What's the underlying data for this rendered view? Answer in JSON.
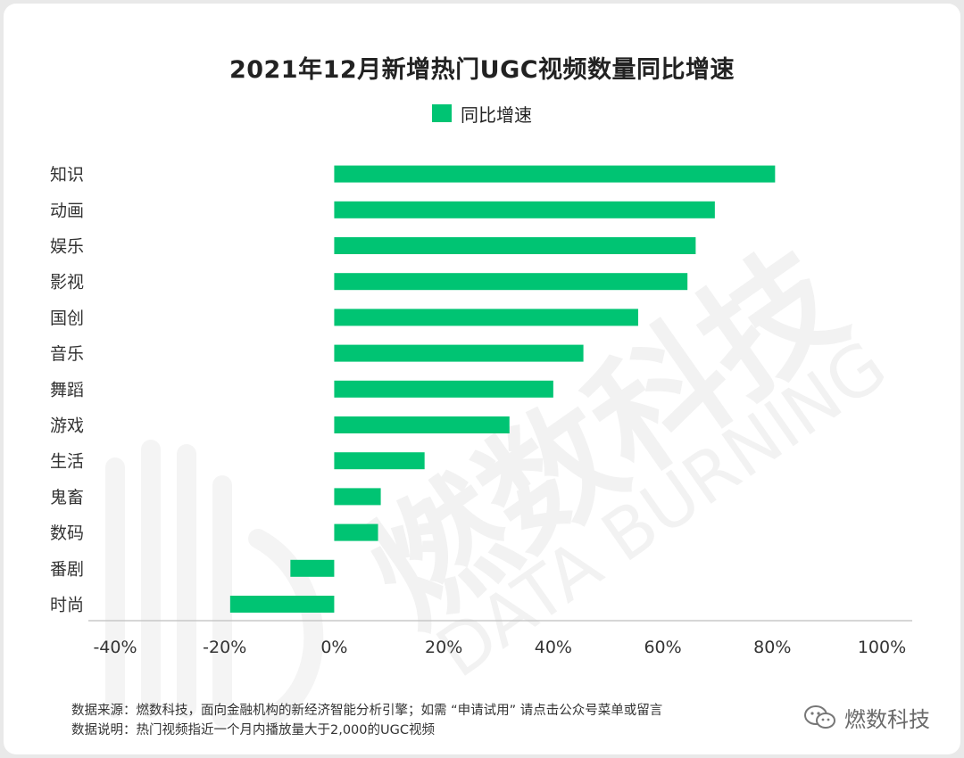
{
  "page": {
    "title": "2021年12月新增热门UGC视频数量同比增速",
    "footer_source": "数据来源：燃数科技，面向金融机构的新经济智能分析引擎；如需 “申请试用” 请点击公众号菜单或留言",
    "footer_note": "数据说明：热门视频指近一个月内播放量大于2,000的UGC视频",
    "brand_name": "燃数科技",
    "brand_icon": "wechat-icon",
    "watermark_cn": "燃数科技",
    "watermark_en": "DATA BURNING"
  },
  "chart_data": {
    "type": "bar",
    "orientation": "horizontal",
    "title": "2021年12月新增热门UGC视频数量同比增速",
    "categories": [
      "知识",
      "动画",
      "娱乐",
      "影视",
      "国创",
      "音乐",
      "舞蹈",
      "游戏",
      "生活",
      "鬼畜",
      "数码",
      "番剧",
      "时尚"
    ],
    "series": [
      {
        "name": "同比增速",
        "color": "#00c473",
        "values": [
          80.5,
          69.5,
          66,
          64.5,
          55.5,
          45.5,
          40,
          32,
          16.5,
          8.5,
          8,
          -8,
          -19
        ]
      }
    ],
    "xlim": [
      -40,
      100
    ],
    "xticks": [
      -40,
      -20,
      0,
      20,
      40,
      60,
      80,
      100
    ],
    "xtick_labels": [
      "-40%",
      "-20%",
      "0%",
      "20%",
      "40%",
      "60%",
      "80%",
      "100%"
    ],
    "legend_position": "top-center",
    "grid": false,
    "xlabel": "",
    "ylabel": ""
  }
}
